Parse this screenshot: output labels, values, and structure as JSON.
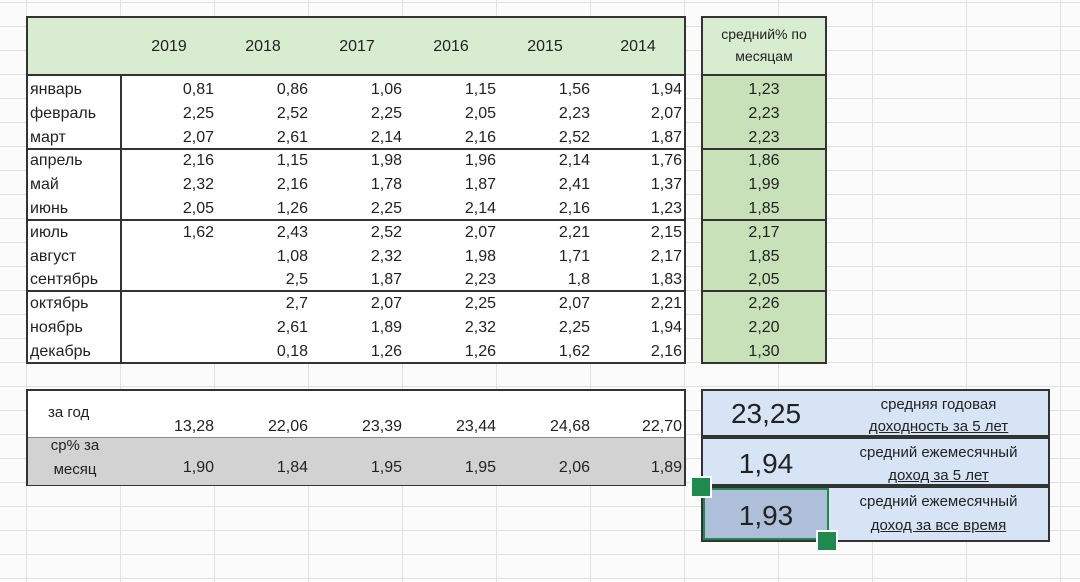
{
  "years": [
    "2019",
    "2018",
    "2017",
    "2016",
    "2015",
    "2014"
  ],
  "avg_header": [
    "средний% по",
    "месяцам"
  ],
  "rows": [
    {
      "month": "январь",
      "values": [
        "0,81",
        "0,86",
        "1,06",
        "1,15",
        "1,56",
        "1,94"
      ],
      "avg": "1,23"
    },
    {
      "month": "февраль",
      "values": [
        "2,25",
        "2,52",
        "2,25",
        "2,05",
        "2,23",
        "2,07"
      ],
      "avg": "2,23"
    },
    {
      "month": "март",
      "values": [
        "2,07",
        "2,61",
        "2,14",
        "2,16",
        "2,52",
        "1,87"
      ],
      "avg": "2,23"
    },
    {
      "month": "апрель",
      "values": [
        "2,16",
        "1,15",
        "1,98",
        "1,96",
        "2,14",
        "1,76"
      ],
      "avg": "1,86"
    },
    {
      "month": "май",
      "values": [
        "2,32",
        "2,16",
        "1,78",
        "1,87",
        "2,41",
        "1,37"
      ],
      "avg": "1,99"
    },
    {
      "month": "июнь",
      "values": [
        "2,05",
        "1,26",
        "2,25",
        "2,14",
        "2,16",
        "1,23"
      ],
      "avg": "1,85"
    },
    {
      "month": "июль",
      "values": [
        "1,62",
        "2,43",
        "2,52",
        "2,07",
        "2,21",
        "2,15"
      ],
      "avg": "2,17"
    },
    {
      "month": "август",
      "values": [
        "",
        "1,08",
        "2,32",
        "1,98",
        "1,71",
        "2,17"
      ],
      "avg": "1,85"
    },
    {
      "month": "сентябрь",
      "values": [
        "",
        "2,5",
        "1,87",
        "2,23",
        "1,8",
        "1,83"
      ],
      "avg": "2,05"
    },
    {
      "month": "октябрь",
      "values": [
        "",
        "2,7",
        "2,07",
        "2,25",
        "2,07",
        "2,21"
      ],
      "avg": "2,26"
    },
    {
      "month": "ноябрь",
      "values": [
        "",
        "2,61",
        "1,89",
        "2,32",
        "2,25",
        "1,94"
      ],
      "avg": "2,20"
    },
    {
      "month": "декабрь",
      "values": [
        "",
        "0,18",
        "1,26",
        "1,26",
        "1,62",
        "2,16"
      ],
      "avg": "1,30"
    }
  ],
  "totals": {
    "year_label": "за год",
    "year_values": [
      "13,28",
      "22,06",
      "23,39",
      "23,44",
      "24,68",
      "22,70"
    ],
    "month_label_line1": "ср% за",
    "month_label_line2": "месяц",
    "month_values": [
      "1,90",
      "1,84",
      "1,95",
      "1,95",
      "2,06",
      "1,89"
    ]
  },
  "summary": [
    {
      "value": "23,25",
      "label_line1": "средняя годовая",
      "label_line2": "доходность за 5 лет"
    },
    {
      "value": "1,94",
      "label_line1": "средний ежемесячный",
      "label_line2": "доход за 5 лет"
    },
    {
      "value": "1,93",
      "label_line1": "средний ежемесячный",
      "label_line2": "доход за все время"
    }
  ],
  "colors": {
    "header_green": "#d8ecd0",
    "avg_green": "#c8e1b9",
    "summary_blue": "#d6e4f5",
    "selection_green": "#1e8a4e"
  }
}
